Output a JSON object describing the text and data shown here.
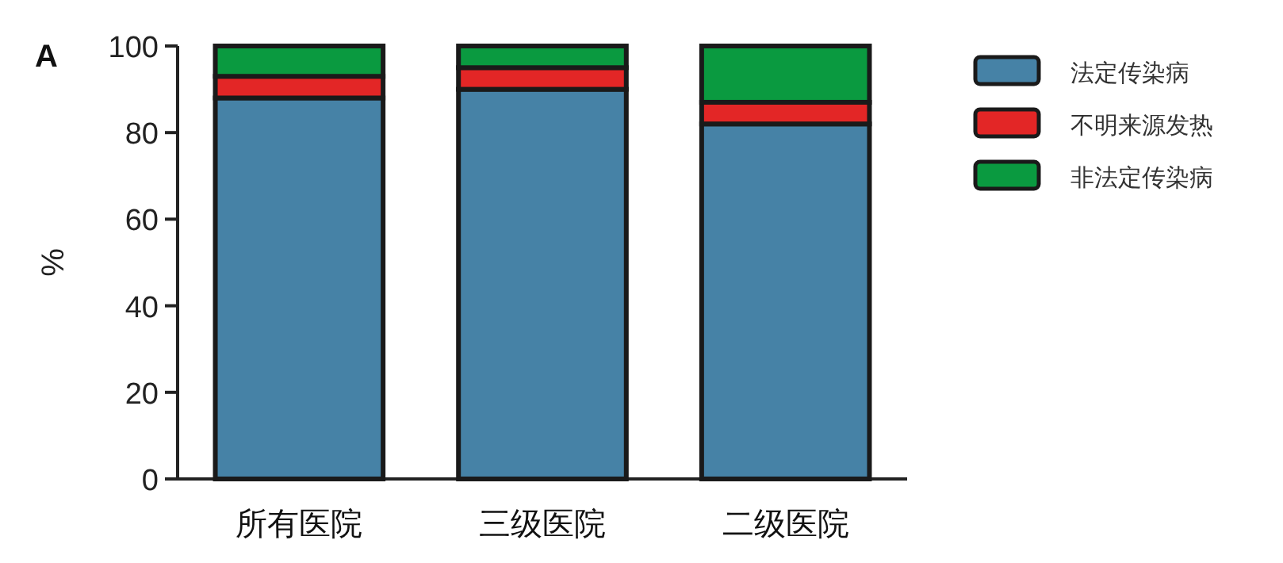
{
  "chart_data": {
    "type": "bar",
    "stacked": true,
    "ylabel": "%",
    "annotations": [
      "A"
    ],
    "categories": [
      "所有医院",
      "三级医院",
      "二级医院"
    ],
    "series": [
      {
        "name": "法定传染病",
        "color": "#4682a6",
        "values": [
          88,
          90,
          82
        ]
      },
      {
        "name": "不明来源发热",
        "color": "#e32626",
        "values": [
          5,
          5,
          5
        ]
      },
      {
        "name": "非法定传染病",
        "color": "#0a9a40",
        "values": [
          7,
          5,
          13
        ]
      }
    ],
    "ylim": [
      0,
      100
    ],
    "yticks": [
      0,
      20,
      40,
      60,
      80,
      100
    ],
    "legend": "right"
  }
}
